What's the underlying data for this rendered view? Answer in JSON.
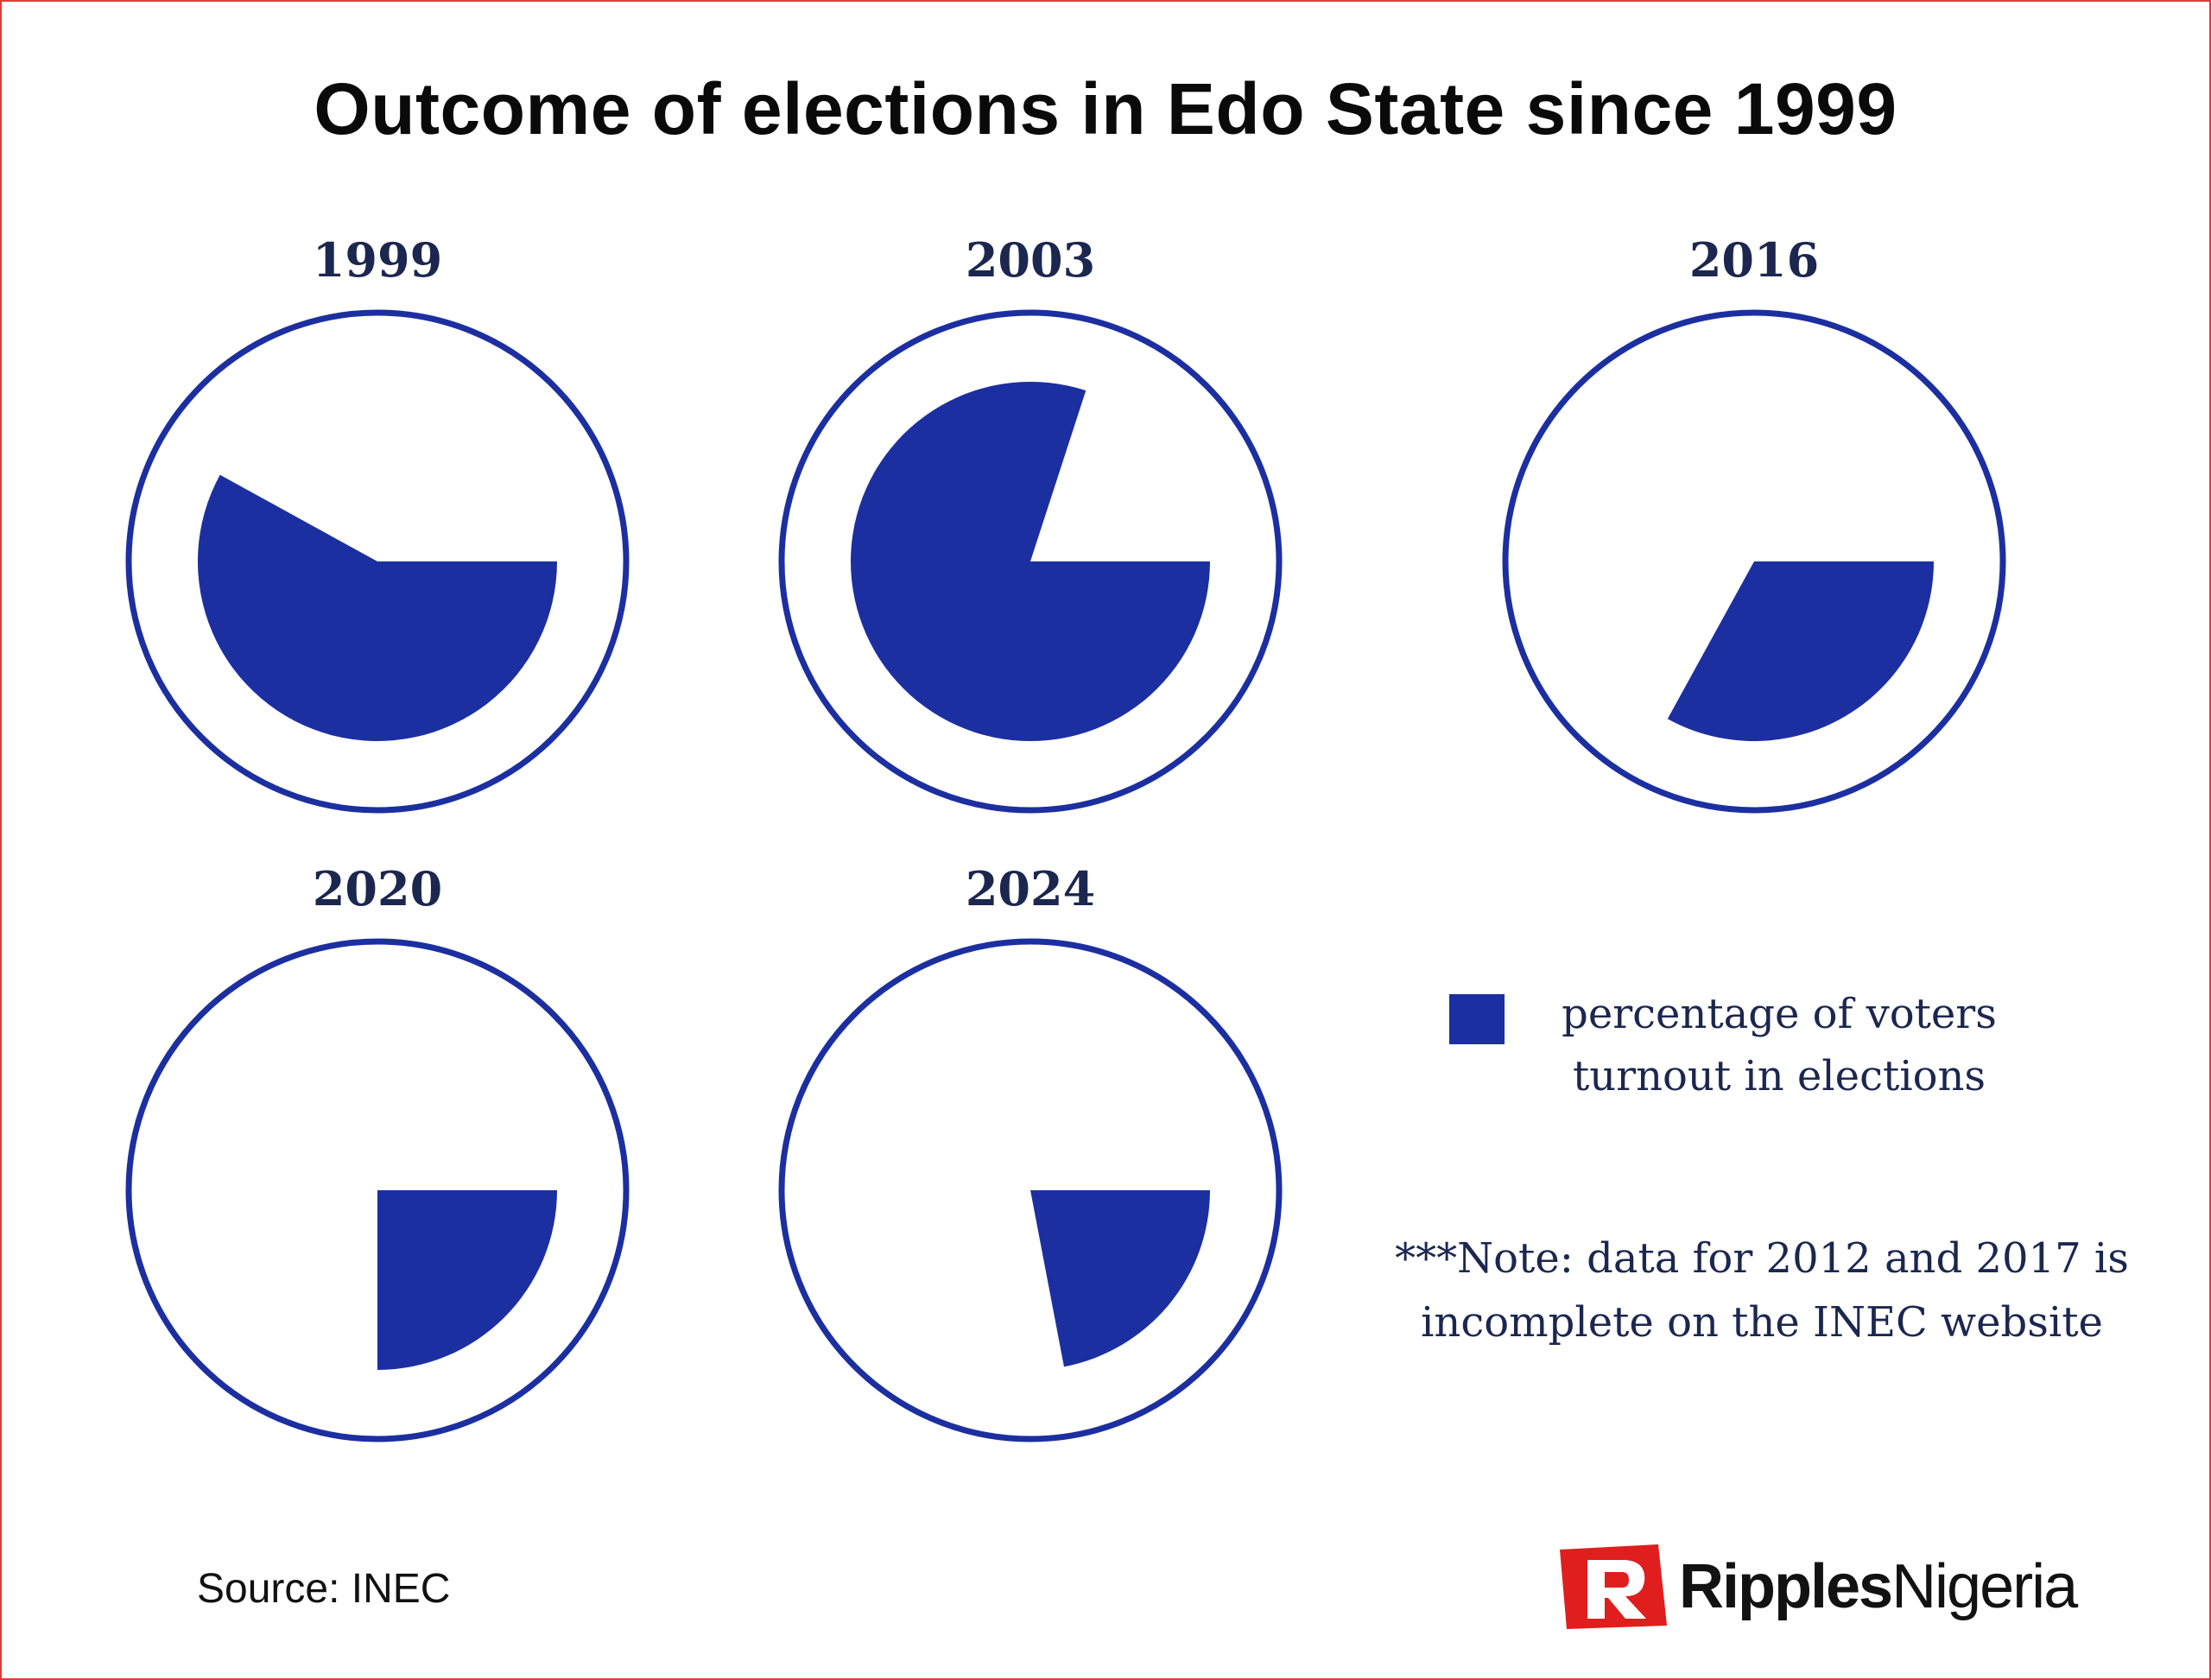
{
  "title": "Outcome of elections in Edo State since 1999",
  "chart_data": {
    "type": "pie",
    "title": "Outcome of elections in Edo State since 1999",
    "series_label": "percentage of voters turnout in elections",
    "charts": [
      {
        "year": "1999",
        "value": 58
      },
      {
        "year": "2003",
        "value": 80
      },
      {
        "year": "2016",
        "value": 33
      },
      {
        "year": "2020",
        "value": 25
      },
      {
        "year": "2024",
        "value": 22
      }
    ]
  },
  "legend": {
    "line1": "percentage of voters",
    "line2": "turnout in elections"
  },
  "note": {
    "line1": "***Note: data for 2012 and 2017 is",
    "line2": "incomplete on the INEC  website"
  },
  "source": "Source: INEC",
  "brand": {
    "logo_icon": "ripples-r-logo-icon",
    "word1": "Ripples",
    "word2": "Nigeria"
  },
  "colors": {
    "accent": "#1c2fa1",
    "ring": "#1c2fa1",
    "label": "#1c2750",
    "border": "#e23a3a",
    "logo_red": "#e01e1e"
  }
}
